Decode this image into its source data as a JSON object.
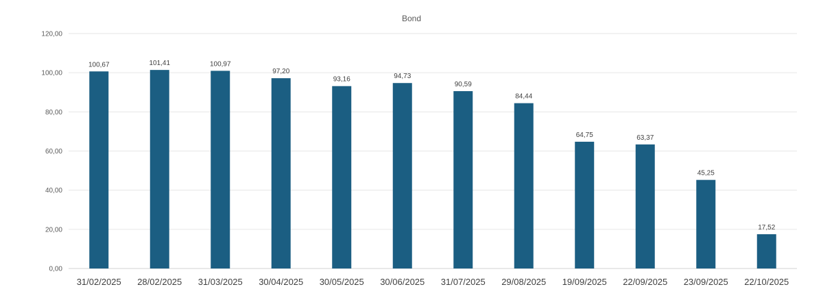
{
  "chart_data": {
    "type": "bar",
    "title": "Bond",
    "xlabel": "",
    "ylabel": "",
    "categories": [
      "31/02/2025",
      "28/02/2025",
      "31/03/2025",
      "30/04/2025",
      "30/05/2025",
      "30/06/2025",
      "31/07/2025",
      "29/08/2025",
      "19/09/2025",
      "22/09/2025",
      "23/09/2025",
      "22/10/2025"
    ],
    "values": [
      100.67,
      101.41,
      100.97,
      97.2,
      93.16,
      94.73,
      90.59,
      84.44,
      64.75,
      63.37,
      45.25,
      17.52
    ],
    "value_labels": [
      "100,67",
      "101,41",
      "100,97",
      "97,20",
      "93,16",
      "94,73",
      "90,59",
      "84,44",
      "64,75",
      "63,37",
      "45,25",
      "17,52"
    ],
    "ylim": [
      0,
      120
    ],
    "y_ticks": [
      0,
      20,
      40,
      60,
      80,
      100,
      120
    ],
    "y_tick_labels": [
      "0,00",
      "20,00",
      "40,00",
      "60,00",
      "80,00",
      "100,00",
      "120,00"
    ],
    "grid": true,
    "legend": "none",
    "bar_color": "#1b5e82"
  }
}
